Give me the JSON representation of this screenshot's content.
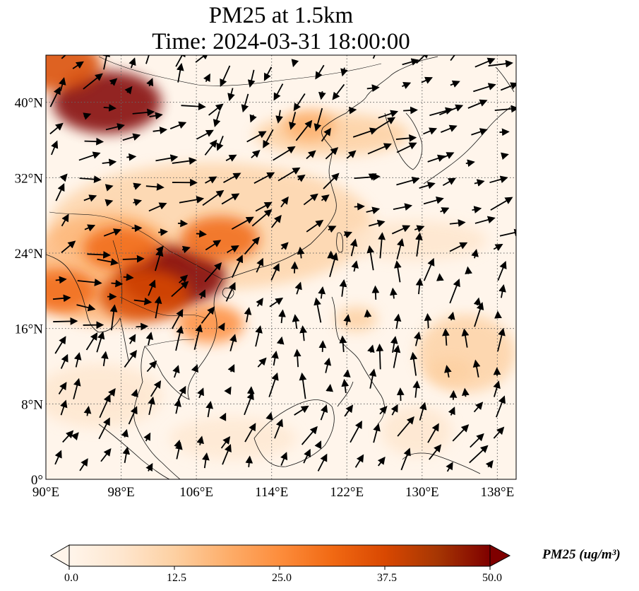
{
  "title": {
    "line1": "PM25 at 1.5km",
    "line2": "Time: 2024-03-31 18:00:00"
  },
  "map": {
    "lon_range": [
      90,
      140
    ],
    "lat_range": [
      0,
      45
    ],
    "lon_ticks": [
      {
        "value": 90,
        "label": "90°E"
      },
      {
        "value": 98,
        "label": "98°E"
      },
      {
        "value": 106,
        "label": "106°E"
      },
      {
        "value": 114,
        "label": "114°E"
      },
      {
        "value": 122,
        "label": "122°E"
      },
      {
        "value": 130,
        "label": "130°E"
      },
      {
        "value": 138,
        "label": "138°E"
      }
    ],
    "lat_ticks": [
      {
        "value": 0,
        "label": "0°"
      },
      {
        "value": 8,
        "label": "8°N"
      },
      {
        "value": 16,
        "label": "16°N"
      },
      {
        "value": 24,
        "label": "24°N"
      },
      {
        "value": 32,
        "label": "32°N"
      },
      {
        "value": 40,
        "label": "40°N"
      }
    ],
    "gridlines": "dotted",
    "pm25_hotspots": [
      {
        "lon": 103.5,
        "lat": 21.5,
        "value": 48
      },
      {
        "lon": 100.5,
        "lat": 19.5,
        "value": 40
      },
      {
        "lon": 108.5,
        "lat": 25.5,
        "value": 32
      },
      {
        "lon": 96.5,
        "lat": 40.0,
        "value": 50
      },
      {
        "lon": 91.0,
        "lat": 44.0,
        "value": 40
      },
      {
        "lon": 91.5,
        "lat": 20.0,
        "value": 30
      },
      {
        "lon": 98.0,
        "lat": 24.5,
        "value": 30
      },
      {
        "lon": 107.5,
        "lat": 16.5,
        "value": 25
      },
      {
        "lon": 118.0,
        "lat": 37.5,
        "value": 16
      },
      {
        "lon": 133.0,
        "lat": 11.5,
        "value": 12
      },
      {
        "lon": 123.0,
        "lat": 17.0,
        "value": 10
      }
    ]
  },
  "wind_field": {
    "regions": [
      {
        "lon": [
          92,
          106
        ],
        "lat": [
          24,
          40
        ],
        "u": 1.0,
        "v": 0.15
      },
      {
        "lon": [
          106,
          122
        ],
        "lat": [
          22,
          38
        ],
        "u": 0.8,
        "v": 0.6
      },
      {
        "lon": [
          122,
          140
        ],
        "lat": [
          24,
          44
        ],
        "u": 1.0,
        "v": 0.3
      },
      {
        "lon": [
          108,
          122
        ],
        "lat": [
          36,
          45
        ],
        "u": -0.4,
        "v": -0.9
      },
      {
        "lon": [
          114,
          140
        ],
        "lat": [
          8,
          24
        ],
        "u": 0.1,
        "v": 0.9
      },
      {
        "lon": [
          92,
          114
        ],
        "lat": [
          0,
          18
        ],
        "u": 0.3,
        "v": 0.7
      },
      {
        "lon": [
          90,
          100
        ],
        "lat": [
          16,
          24
        ],
        "u": 1.0,
        "v": -0.1
      }
    ]
  },
  "colorbar": {
    "title": "PM25 (ug/m³)",
    "min": 0.0,
    "max": 50.0,
    "ticks": [
      "0.0",
      "12.5",
      "25.0",
      "37.5",
      "50.0"
    ],
    "colors": [
      "#fff5eb",
      "#fee6ce",
      "#fdd0a2",
      "#fdae6b",
      "#fd8d3c",
      "#f16913",
      "#d94801",
      "#a63603",
      "#7f0000"
    ],
    "extend": "both"
  }
}
